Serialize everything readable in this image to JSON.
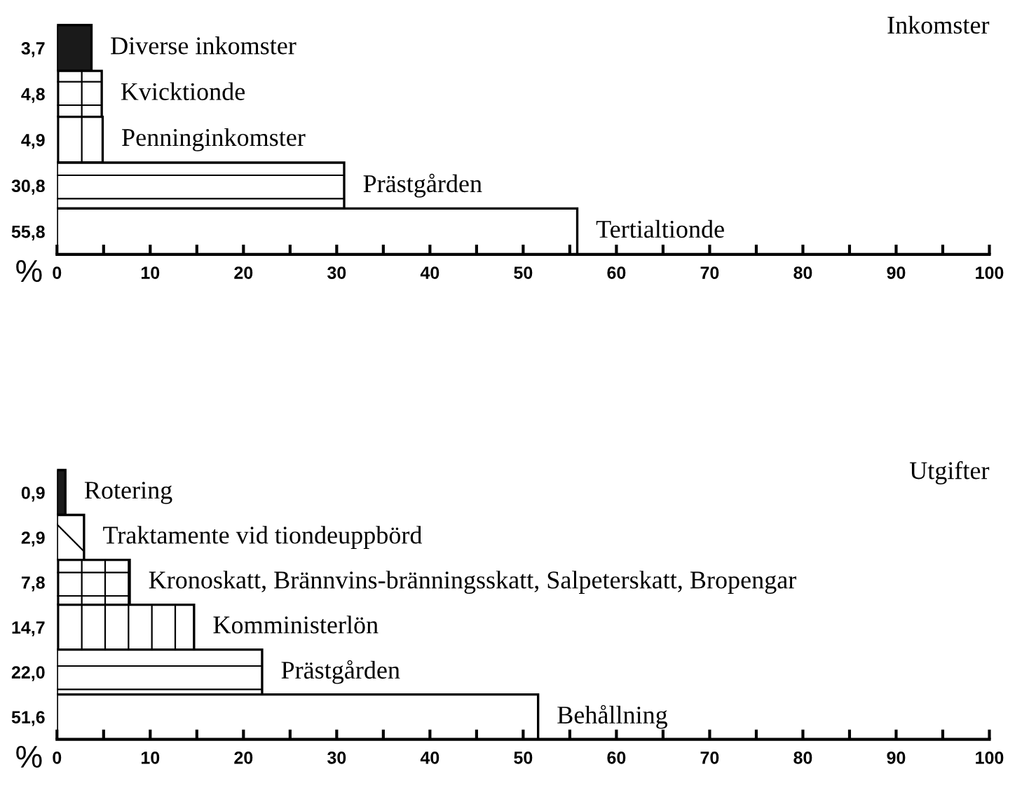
{
  "chart_data": [
    {
      "type": "bar",
      "orientation": "horizontal",
      "title": "Inkomster",
      "xlabel": "%",
      "categories": [
        "Diverse inkomster",
        "Kvicktionde",
        "Penninginkomster",
        "Prästgården",
        "Tertialtionde"
      ],
      "values": [
        3.7,
        4.8,
        4.9,
        30.8,
        55.8
      ],
      "value_labels": [
        "3,7",
        "4,8",
        "4,9",
        "30,8",
        "55,8"
      ],
      "colors": [
        "#1a1a1a",
        "#ffffff",
        "#ffffff",
        "#ffffff",
        "#ffffff"
      ],
      "xlim": [
        0,
        100
      ],
      "xticks": [
        0,
        {
          "value": 5,
          "label": null
        },
        10,
        {
          "value": 15,
          "label": null
        },
        20,
        {
          "value": 25,
          "label": null
        },
        30,
        {
          "value": 35,
          "label": null
        },
        40,
        {
          "value": 45,
          "label": null
        },
        50,
        {
          "value": 55,
          "label": null
        },
        60,
        {
          "value": 65,
          "label": null
        },
        70,
        {
          "value": 75,
          "label": null
        },
        80,
        {
          "value": 85,
          "label": null
        },
        90,
        {
          "value": 95,
          "label": null
        },
        100
      ],
      "grid": false
    },
    {
      "type": "bar",
      "orientation": "horizontal",
      "title": "Utgifter",
      "xlabel": "%",
      "categories": [
        "Rotering",
        "Traktamente vid tiondeuppbörd",
        "Kronoskatt, Brännvins-bränningsskatt, Salpeterskatt, Bropengar",
        "Komministerlön",
        "Prästgården",
        "Behållning"
      ],
      "values": [
        0.9,
        2.9,
        7.8,
        14.7,
        22.0,
        51.6
      ],
      "value_labels": [
        "0,9",
        "2,9",
        "7,8",
        "14,7",
        "22,0",
        "51,6"
      ],
      "colors": [
        "#1a1a1a",
        "#ffffff",
        "#ffffff",
        "#ffffff",
        "#ffffff",
        "#ffffff"
      ],
      "xlim": [
        0,
        100
      ],
      "xticks": [
        0,
        {
          "value": 5,
          "label": null
        },
        10,
        {
          "value": 15,
          "label": null
        },
        20,
        {
          "value": 25,
          "label": null
        },
        30,
        {
          "value": 35,
          "label": null
        },
        40,
        {
          "value": 45,
          "label": null
        },
        50,
        {
          "value": 55,
          "label": null
        },
        60,
        {
          "value": 65,
          "label": null
        },
        70,
        {
          "value": 75,
          "label": null
        },
        80,
        {
          "value": 85,
          "label": null
        },
        90,
        {
          "value": 95,
          "label": null
        },
        100
      ],
      "grid": false
    }
  ]
}
